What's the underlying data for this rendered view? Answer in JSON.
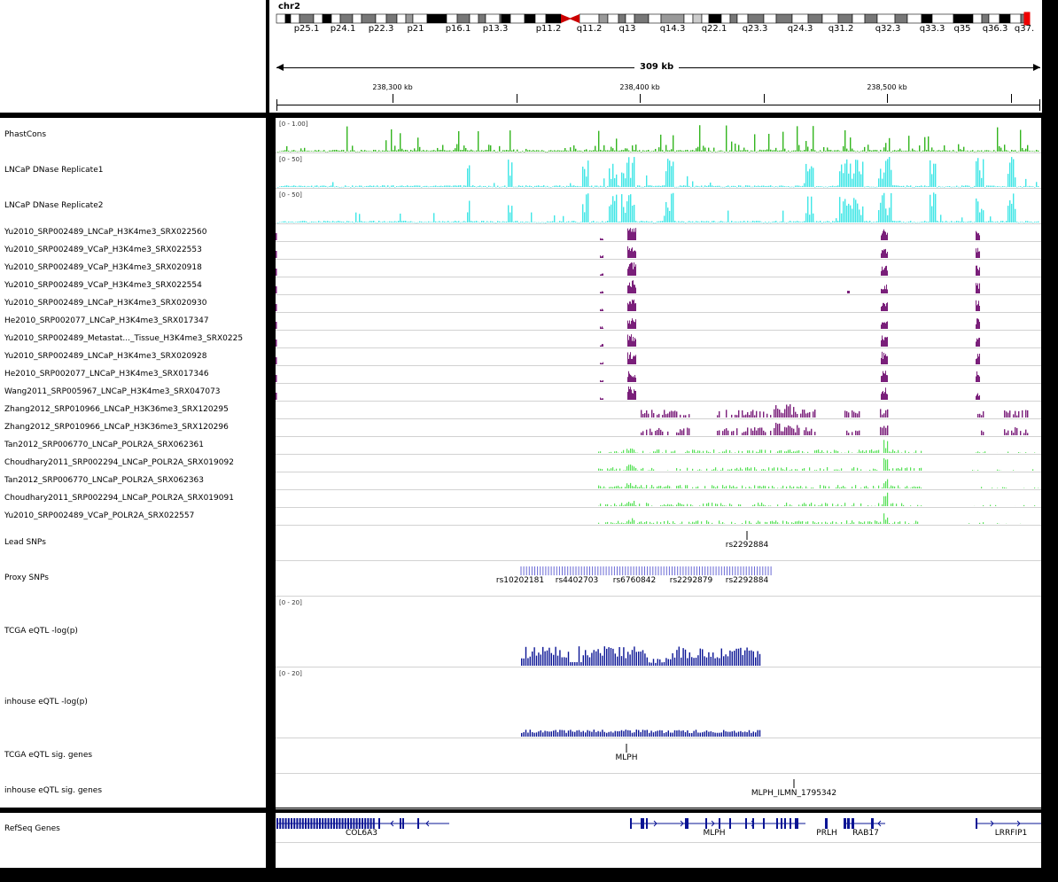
{
  "chromosome": "chr2",
  "cytobands": [
    "p25.1",
    "p24.1",
    "p22.3",
    "p21",
    "p16.1",
    "p13.3",
    "p11.2",
    "q11.2",
    "q13",
    "q14.3",
    "q22.1",
    "q23.3",
    "q24.3",
    "q31.2",
    "q32.3",
    "q33.3",
    "q35",
    "q36.3",
    "q37."
  ],
  "ruler": {
    "span_label": "309 kb",
    "ticks": [
      "238,300 kb",
      "238,400 kb",
      "238,500 kb"
    ]
  },
  "tracks": [
    {
      "id": "phastcons",
      "name": "PhastCons",
      "range": "[0 - 1.00]",
      "color": "#33b51f",
      "type": "signal"
    },
    {
      "id": "dnase1",
      "name": "LNCaP DNase Replicate1",
      "range": "[0 - 50]",
      "color": "#40e6e6",
      "type": "signal"
    },
    {
      "id": "dnase2",
      "name": "LNCaP DNase Replicate2",
      "range": "[0 - 50]",
      "color": "#40e6e6",
      "type": "signal"
    },
    {
      "id": "k4_1",
      "name": "Yu2010_SRP002489_LNCaP_H3K4me3_SRX022560",
      "color": "#7a1f7a",
      "type": "peaks"
    },
    {
      "id": "k4_2",
      "name": "Yu2010_SRP002489_VCaP_H3K4me3_SRX022553",
      "color": "#7a1f7a",
      "type": "peaks"
    },
    {
      "id": "k4_3",
      "name": "Yu2010_SRP002489_VCaP_H3K4me3_SRX020918",
      "color": "#7a1f7a",
      "type": "peaks"
    },
    {
      "id": "k4_4",
      "name": "Yu2010_SRP002489_VCaP_H3K4me3_SRX022554",
      "color": "#7a1f7a",
      "type": "peaks"
    },
    {
      "id": "k4_5",
      "name": "Yu2010_SRP002489_LNCaP_H3K4me3_SRX020930",
      "color": "#7a1f7a",
      "type": "peaks"
    },
    {
      "id": "k4_6",
      "name": "He2010_SRP002077_LNCaP_H3K4me3_SRX017347",
      "color": "#7a1f7a",
      "type": "peaks"
    },
    {
      "id": "k4_7",
      "name": "Yu2010_SRP002489_Metastat..._Tissue_H3K4me3_SRX0225",
      "color": "#7a1f7a",
      "type": "peaks"
    },
    {
      "id": "k4_8",
      "name": "Yu2010_SRP002489_LNCaP_H3K4me3_SRX020928",
      "color": "#7a1f7a",
      "type": "peaks"
    },
    {
      "id": "k4_9",
      "name": "He2010_SRP002077_LNCaP_H3K4me3_SRX017346",
      "color": "#7a1f7a",
      "type": "peaks"
    },
    {
      "id": "k4_10",
      "name": "Wang2011_SRP005967_LNCaP_H3K4me3_SRX047073",
      "color": "#7a1f7a",
      "type": "peaks"
    },
    {
      "id": "k36_1",
      "name": "Zhang2012_SRP010966_LNCaP_H3K36me3_SRX120295",
      "color": "#7a1f7a",
      "type": "broad"
    },
    {
      "id": "k36_2",
      "name": "Zhang2012_SRP010966_LNCaP_H3K36me3_SRX120296",
      "color": "#7a1f7a",
      "type": "broad"
    },
    {
      "id": "pol_1",
      "name": "Tan2012_SRP006770_LNCaP_POLR2A_SRX062361",
      "color": "#55e055",
      "type": "pol"
    },
    {
      "id": "pol_2",
      "name": "Choudhary2011_SRP002294_LNCaP_POLR2A_SRX019092",
      "color": "#55e055",
      "type": "pol"
    },
    {
      "id": "pol_3",
      "name": "Tan2012_SRP006770_LNCaP_POLR2A_SRX062363",
      "color": "#55e055",
      "type": "pol"
    },
    {
      "id": "pol_4",
      "name": "Choudhary2011_SRP002294_LNCaP_POLR2A_SRX019091",
      "color": "#55e055",
      "type": "pol"
    },
    {
      "id": "pol_5",
      "name": "Yu2010_SRP002489_VCaP_POLR2A_SRX022557",
      "color": "#55e055",
      "type": "pol"
    },
    {
      "id": "lead_snps",
      "name": "Lead SNPs",
      "type": "feature",
      "labels": [
        "rs2292884"
      ]
    },
    {
      "id": "proxy_snps",
      "name": "Proxy SNPs",
      "type": "feature",
      "labels": [
        "rs10202181",
        "rs4402703",
        "rs6760842",
        "rs2292879",
        "rs2292884"
      ]
    },
    {
      "id": "tcga_eqtl",
      "name": "TCGA eQTL -log(p)",
      "range": "[0 - 20]",
      "color": "#0a1494",
      "type": "eqtl"
    },
    {
      "id": "inhouse_eqtl",
      "name": "inhouse eQTL -log(p)",
      "range": "[0 - 20]",
      "color": "#0a1494",
      "type": "eqtl"
    },
    {
      "id": "tcga_sig",
      "name": "TCGA eQTL sig. genes",
      "type": "feature",
      "labels": [
        "MLPH"
      ]
    },
    {
      "id": "inhouse_sig",
      "name": "inhouse eQTL sig. genes",
      "type": "feature",
      "labels": [
        "MLPH_ILMN_1795342"
      ]
    }
  ],
  "refseq": {
    "name": "RefSeq Genes",
    "color": "#0a1494",
    "genes": [
      "COL6A3",
      "MLPH",
      "PRLH",
      "RAB17",
      "LRRFIP1"
    ]
  }
}
